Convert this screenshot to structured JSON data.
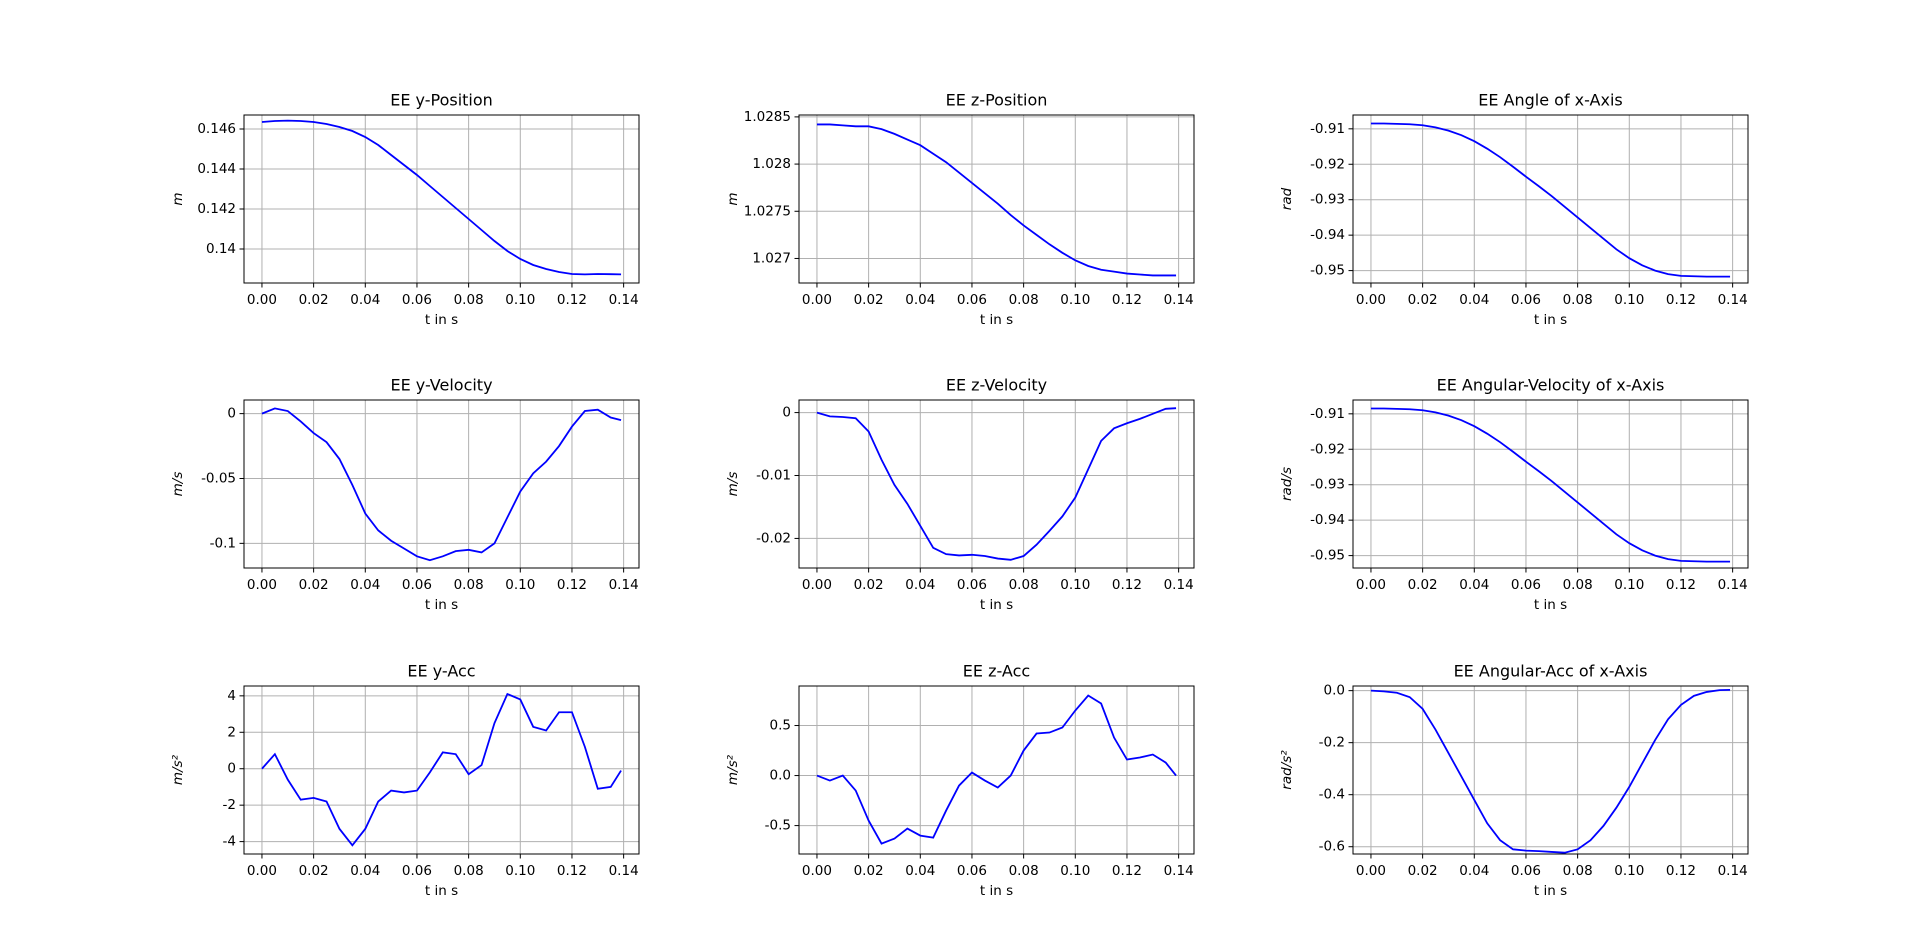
{
  "chart_data": [
    {
      "type": "line",
      "title": "EE y-Position",
      "xlabel": "t in s",
      "ylabel": "m",
      "grid": true,
      "x": [
        0,
        0.005,
        0.01,
        0.015,
        0.02,
        0.025,
        0.03,
        0.035,
        0.04,
        0.045,
        0.05,
        0.055,
        0.06,
        0.065,
        0.07,
        0.075,
        0.08,
        0.085,
        0.09,
        0.095,
        0.1,
        0.105,
        0.11,
        0.115,
        0.12,
        0.125,
        0.13,
        0.135,
        0.139
      ],
      "series": [
        {
          "color": "#0000ff",
          "values": [
            0.14635,
            0.1464,
            0.14642,
            0.1464,
            0.14635,
            0.14625,
            0.1461,
            0.1459,
            0.1456,
            0.1452,
            0.1447,
            0.1442,
            0.1437,
            0.14315,
            0.1426,
            0.14205,
            0.1415,
            0.14095,
            0.1404,
            0.1399,
            0.1395,
            0.1392,
            0.139,
            0.13885,
            0.13875,
            0.13873,
            0.13875,
            0.13874,
            0.13873
          ]
        }
      ],
      "xlim": [
        -0.00695,
        0.14595
      ],
      "ylim": [
        0.1383,
        0.1467
      ],
      "xticks": [
        {
          "value": 0,
          "label": "0.00"
        },
        {
          "value": 0.02,
          "label": "0.02"
        },
        {
          "value": 0.04,
          "label": "0.04"
        },
        {
          "value": 0.06,
          "label": "0.06"
        },
        {
          "value": 0.08,
          "label": "0.08"
        },
        {
          "value": 0.1,
          "label": "0.10"
        },
        {
          "value": 0.12,
          "label": "0.12"
        },
        {
          "value": 0.14,
          "label": "0.14"
        }
      ],
      "yticks": [
        0.14,
        0.142,
        0.144,
        0.146
      ]
    },
    {
      "type": "line",
      "title": "EE z-Position",
      "xlabel": "t in s",
      "ylabel": "m",
      "grid": true,
      "x": [
        0,
        0.005,
        0.01,
        0.015,
        0.02,
        0.025,
        0.03,
        0.035,
        0.04,
        0.045,
        0.05,
        0.055,
        0.06,
        0.065,
        0.07,
        0.075,
        0.08,
        0.085,
        0.09,
        0.095,
        0.1,
        0.105,
        0.11,
        0.115,
        0.12,
        0.125,
        0.13,
        0.135,
        0.139
      ],
      "series": [
        {
          "color": "#0000ff",
          "values": [
            1.02842,
            1.02842,
            1.02841,
            1.0284,
            1.0284,
            1.02837,
            1.02832,
            1.02826,
            1.0282,
            1.02811,
            1.02802,
            1.02791,
            1.0278,
            1.02769,
            1.02758,
            1.02746,
            1.02735,
            1.02725,
            1.02715,
            1.02706,
            1.02698,
            1.02692,
            1.02688,
            1.02686,
            1.02684,
            1.02683,
            1.02682,
            1.02682,
            1.02682
          ]
        }
      ],
      "xlim": [
        -0.00695,
        0.14595
      ],
      "ylim": [
        1.02674,
        1.02852
      ],
      "xticks": [
        {
          "value": 0,
          "label": "0.00"
        },
        {
          "value": 0.02,
          "label": "0.02"
        },
        {
          "value": 0.04,
          "label": "0.04"
        },
        {
          "value": 0.06,
          "label": "0.06"
        },
        {
          "value": 0.08,
          "label": "0.08"
        },
        {
          "value": 0.1,
          "label": "0.10"
        },
        {
          "value": 0.12,
          "label": "0.12"
        },
        {
          "value": 0.14,
          "label": "0.14"
        }
      ],
      "yticks": [
        1.027,
        1.0275,
        1.028,
        1.0285
      ]
    },
    {
      "type": "line",
      "title": "EE Angle of x-Axis",
      "xlabel": "t in s",
      "ylabel": "rad",
      "grid": true,
      "x": [
        0,
        0.005,
        0.01,
        0.015,
        0.02,
        0.025,
        0.03,
        0.035,
        0.04,
        0.045,
        0.05,
        0.055,
        0.06,
        0.065,
        0.07,
        0.075,
        0.08,
        0.085,
        0.09,
        0.095,
        0.1,
        0.105,
        0.11,
        0.115,
        0.12,
        0.125,
        0.13,
        0.135,
        0.139
      ],
      "series": [
        {
          "color": "#0000ff",
          "values": [
            -0.9085,
            -0.9085,
            -0.9086,
            -0.9087,
            -0.909,
            -0.9096,
            -0.9105,
            -0.9118,
            -0.9135,
            -0.9156,
            -0.918,
            -0.9207,
            -0.9235,
            -0.9262,
            -0.929,
            -0.932,
            -0.935,
            -0.938,
            -0.941,
            -0.944,
            -0.9465,
            -0.9485,
            -0.95,
            -0.951,
            -0.9515,
            -0.9516,
            -0.9517,
            -0.9517,
            -0.9517
          ]
        }
      ],
      "xlim": [
        -0.00695,
        0.14595
      ],
      "ylim": [
        -0.9535,
        -0.9061
      ],
      "xticks": [
        {
          "value": 0,
          "label": "0.00"
        },
        {
          "value": 0.02,
          "label": "0.02"
        },
        {
          "value": 0.04,
          "label": "0.04"
        },
        {
          "value": 0.06,
          "label": "0.06"
        },
        {
          "value": 0.08,
          "label": "0.08"
        },
        {
          "value": 0.1,
          "label": "0.10"
        },
        {
          "value": 0.12,
          "label": "0.12"
        },
        {
          "value": 0.14,
          "label": "0.14"
        }
      ],
      "yticks": [
        -0.95,
        -0.94,
        -0.93,
        -0.92,
        -0.91
      ]
    },
    {
      "type": "line",
      "title": "EE y-Velocity",
      "xlabel": "t in s",
      "ylabel": "m/s",
      "grid": true,
      "x": [
        0,
        0.005,
        0.01,
        0.015,
        0.02,
        0.025,
        0.03,
        0.035,
        0.04,
        0.045,
        0.05,
        0.055,
        0.06,
        0.065,
        0.07,
        0.075,
        0.08,
        0.085,
        0.09,
        0.095,
        0.1,
        0.105,
        0.11,
        0.115,
        0.12,
        0.125,
        0.13,
        0.135,
        0.139
      ],
      "series": [
        {
          "color": "#0000ff",
          "values": [
            0,
            0.004,
            0.002,
            -0.006,
            -0.015,
            -0.022,
            -0.035,
            -0.055,
            -0.077,
            -0.09,
            -0.098,
            -0.104,
            -0.11,
            -0.113,
            -0.11,
            -0.106,
            -0.105,
            -0.107,
            -0.1,
            -0.08,
            -0.06,
            -0.046,
            -0.037,
            -0.025,
            -0.01,
            0.002,
            0.003,
            -0.003,
            -0.005
          ]
        }
      ],
      "xlim": [
        -0.00695,
        0.14595
      ],
      "ylim": [
        -0.119,
        0.0105
      ],
      "xticks": [
        {
          "value": 0,
          "label": "0.00"
        },
        {
          "value": 0.02,
          "label": "0.02"
        },
        {
          "value": 0.04,
          "label": "0.04"
        },
        {
          "value": 0.06,
          "label": "0.06"
        },
        {
          "value": 0.08,
          "label": "0.08"
        },
        {
          "value": 0.1,
          "label": "0.10"
        },
        {
          "value": 0.12,
          "label": "0.12"
        },
        {
          "value": 0.14,
          "label": "0.14"
        }
      ],
      "yticks": [
        -0.1,
        -0.05,
        0
      ]
    },
    {
      "type": "line",
      "title": "EE z-Velocity",
      "xlabel": "t in s",
      "ylabel": "m/s",
      "grid": true,
      "x": [
        0,
        0.005,
        0.01,
        0.015,
        0.02,
        0.025,
        0.03,
        0.035,
        0.04,
        0.045,
        0.05,
        0.055,
        0.06,
        0.065,
        0.07,
        0.075,
        0.08,
        0.085,
        0.09,
        0.095,
        0.1,
        0.105,
        0.11,
        0.115,
        0.12,
        0.125,
        0.13,
        0.135,
        0.139
      ],
      "series": [
        {
          "color": "#0000ff",
          "values": [
            0,
            -0.0006,
            -0.0007,
            -0.0009,
            -0.003,
            -0.0075,
            -0.0115,
            -0.0145,
            -0.018,
            -0.0215,
            -0.0225,
            -0.0227,
            -0.0226,
            -0.0228,
            -0.0232,
            -0.0234,
            -0.0228,
            -0.021,
            -0.0188,
            -0.0165,
            -0.0135,
            -0.009,
            -0.0045,
            -0.0025,
            -0.0017,
            -0.001,
            -0.0002,
            0.0006,
            0.0007
          ]
        }
      ],
      "xlim": [
        -0.00695,
        0.14595
      ],
      "ylim": [
        -0.0247,
        0.002
      ],
      "xticks": [
        {
          "value": 0,
          "label": "0.00"
        },
        {
          "value": 0.02,
          "label": "0.02"
        },
        {
          "value": 0.04,
          "label": "0.04"
        },
        {
          "value": 0.06,
          "label": "0.06"
        },
        {
          "value": 0.08,
          "label": "0.08"
        },
        {
          "value": 0.1,
          "label": "0.10"
        },
        {
          "value": 0.12,
          "label": "0.12"
        },
        {
          "value": 0.14,
          "label": "0.14"
        }
      ],
      "yticks": [
        -0.02,
        -0.01,
        0
      ]
    },
    {
      "type": "line",
      "title": "EE Angular-Velocity of x-Axis",
      "xlabel": "t in s",
      "ylabel": "rad/s",
      "grid": true,
      "x": [
        0,
        0.005,
        0.01,
        0.015,
        0.02,
        0.025,
        0.03,
        0.035,
        0.04,
        0.045,
        0.05,
        0.055,
        0.06,
        0.065,
        0.07,
        0.075,
        0.08,
        0.085,
        0.09,
        0.095,
        0.1,
        0.105,
        0.11,
        0.115,
        0.12,
        0.125,
        0.13,
        0.135,
        0.139
      ],
      "series": [
        {
          "color": "#0000ff",
          "values": [
            -0.9085,
            -0.9085,
            -0.9086,
            -0.9087,
            -0.909,
            -0.9096,
            -0.9105,
            -0.9118,
            -0.9135,
            -0.9156,
            -0.918,
            -0.9207,
            -0.9235,
            -0.9262,
            -0.929,
            -0.932,
            -0.935,
            -0.938,
            -0.941,
            -0.944,
            -0.9465,
            -0.9485,
            -0.95,
            -0.951,
            -0.9515,
            -0.9516,
            -0.9517,
            -0.9517,
            -0.9517
          ]
        }
      ],
      "xlim": [
        -0.00695,
        0.14595
      ],
      "ylim": [
        -0.9535,
        -0.9061
      ],
      "xticks": [
        {
          "value": 0,
          "label": "0.00"
        },
        {
          "value": 0.02,
          "label": "0.02"
        },
        {
          "value": 0.04,
          "label": "0.04"
        },
        {
          "value": 0.06,
          "label": "0.06"
        },
        {
          "value": 0.08,
          "label": "0.08"
        },
        {
          "value": 0.1,
          "label": "0.10"
        },
        {
          "value": 0.12,
          "label": "0.12"
        },
        {
          "value": 0.14,
          "label": "0.14"
        }
      ],
      "yticks": [
        -0.95,
        -0.94,
        -0.93,
        -0.92,
        -0.91
      ]
    },
    {
      "type": "line",
      "title": "EE y-Acc",
      "xlabel": "t in s",
      "ylabel": "m/s²",
      "grid": true,
      "x": [
        0,
        0.005,
        0.01,
        0.015,
        0.02,
        0.025,
        0.03,
        0.035,
        0.04,
        0.045,
        0.05,
        0.055,
        0.06,
        0.065,
        0.07,
        0.075,
        0.08,
        0.085,
        0.09,
        0.095,
        0.1,
        0.105,
        0.11,
        0.115,
        0.12,
        0.125,
        0.13,
        0.135,
        0.139
      ],
      "series": [
        {
          "color": "#0000ff",
          "values": [
            0,
            0.8,
            -0.6,
            -1.7,
            -1.6,
            -1.8,
            -3.3,
            -4.2,
            -3.3,
            -1.8,
            -1.2,
            -1.3,
            -1.2,
            -0.2,
            0.9,
            0.8,
            -0.3,
            0.2,
            2.5,
            4.1,
            3.8,
            2.3,
            2.1,
            3.1,
            3.1,
            1.2,
            -1.1,
            -1.0,
            -0.1
          ]
        }
      ],
      "xlim": [
        -0.00695,
        0.14595
      ],
      "ylim": [
        -4.68,
        4.54
      ],
      "xticks": [
        {
          "value": 0,
          "label": "0.00"
        },
        {
          "value": 0.02,
          "label": "0.02"
        },
        {
          "value": 0.04,
          "label": "0.04"
        },
        {
          "value": 0.06,
          "label": "0.06"
        },
        {
          "value": 0.08,
          "label": "0.08"
        },
        {
          "value": 0.1,
          "label": "0.10"
        },
        {
          "value": 0.12,
          "label": "0.12"
        },
        {
          "value": 0.14,
          "label": "0.14"
        }
      ],
      "yticks": [
        -4,
        -2,
        0,
        2,
        4
      ]
    },
    {
      "type": "line",
      "title": "EE z-Acc",
      "xlabel": "t in s",
      "ylabel": "m/s²",
      "grid": true,
      "x": [
        0,
        0.005,
        0.01,
        0.015,
        0.02,
        0.025,
        0.03,
        0.035,
        0.04,
        0.045,
        0.05,
        0.055,
        0.06,
        0.065,
        0.07,
        0.075,
        0.08,
        0.085,
        0.09,
        0.095,
        0.1,
        0.105,
        0.11,
        0.115,
        0.12,
        0.125,
        0.13,
        0.135,
        0.139
      ],
      "series": [
        {
          "color": "#0000ff",
          "values": [
            0,
            -0.05,
            0,
            -0.15,
            -0.45,
            -0.68,
            -0.63,
            -0.53,
            -0.6,
            -0.62,
            -0.35,
            -0.1,
            0.03,
            -0.05,
            -0.12,
            0,
            0.25,
            0.42,
            0.43,
            0.48,
            0.65,
            0.8,
            0.72,
            0.38,
            0.16,
            0.18,
            0.21,
            0.13,
            0
          ]
        }
      ],
      "xlim": [
        -0.00695,
        0.14595
      ],
      "ylim": [
        -0.784,
        0.895
      ],
      "xticks": [
        {
          "value": 0,
          "label": "0.00"
        },
        {
          "value": 0.02,
          "label": "0.02"
        },
        {
          "value": 0.04,
          "label": "0.04"
        },
        {
          "value": 0.06,
          "label": "0.06"
        },
        {
          "value": 0.08,
          "label": "0.08"
        },
        {
          "value": 0.1,
          "label": "0.10"
        },
        {
          "value": 0.12,
          "label": "0.12"
        },
        {
          "value": 0.14,
          "label": "0.14"
        }
      ],
      "yticks": [
        -0.5,
        {
          "value": 0,
          "label": "0.0"
        },
        0.5
      ]
    },
    {
      "type": "line",
      "title": "EE Angular-Acc of x-Axis",
      "xlabel": "t in s",
      "ylabel": "rad/s²",
      "grid": true,
      "x": [
        0,
        0.005,
        0.01,
        0.015,
        0.02,
        0.025,
        0.03,
        0.035,
        0.04,
        0.045,
        0.05,
        0.055,
        0.06,
        0.065,
        0.07,
        0.075,
        0.08,
        0.085,
        0.09,
        0.095,
        0.1,
        0.105,
        0.11,
        0.115,
        0.12,
        0.125,
        0.13,
        0.135,
        0.139
      ],
      "series": [
        {
          "color": "#0000ff",
          "values": [
            0,
            -0.003,
            -0.008,
            -0.025,
            -0.07,
            -0.15,
            -0.24,
            -0.33,
            -0.42,
            -0.51,
            -0.575,
            -0.61,
            -0.615,
            -0.617,
            -0.62,
            -0.623,
            -0.61,
            -0.575,
            -0.52,
            -0.45,
            -0.37,
            -0.28,
            -0.19,
            -0.11,
            -0.055,
            -0.02,
            -0.005,
            0.002,
            0.003
          ]
        }
      ],
      "xlim": [
        -0.00695,
        0.14595
      ],
      "ylim": [
        -0.628,
        0.0178
      ],
      "xticks": [
        {
          "value": 0,
          "label": "0.00"
        },
        {
          "value": 0.02,
          "label": "0.02"
        },
        {
          "value": 0.04,
          "label": "0.04"
        },
        {
          "value": 0.06,
          "label": "0.06"
        },
        {
          "value": 0.08,
          "label": "0.08"
        },
        {
          "value": 0.1,
          "label": "0.10"
        },
        {
          "value": 0.12,
          "label": "0.12"
        },
        {
          "value": 0.14,
          "label": "0.14"
        }
      ],
      "yticks": [
        -0.6,
        -0.4,
        -0.2,
        {
          "value": 0,
          "label": "0.0"
        }
      ]
    }
  ]
}
